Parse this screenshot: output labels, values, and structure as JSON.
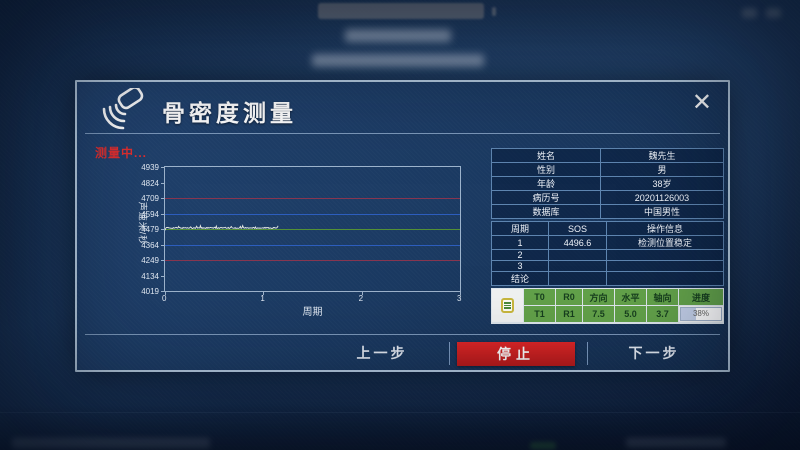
{
  "dialog": {
    "title": "骨密度测量",
    "status_text": "测量中...",
    "close_label": "✕"
  },
  "chart_data": {
    "type": "line",
    "title": "",
    "xlabel": "周期",
    "ylabel": "声速米/秒",
    "xlim": [
      0,
      3
    ],
    "ylim": [
      4019,
      4939
    ],
    "xticks": [
      0,
      1,
      2,
      3
    ],
    "yticks": [
      4019,
      4134,
      4249,
      4364,
      4479,
      4594,
      4709,
      4824,
      4939
    ],
    "grid": false,
    "legend": "none",
    "reference_lines": [
      {
        "value": 4709,
        "color": "#93354e"
      },
      {
        "value": 4594,
        "color": "#2f62c8"
      },
      {
        "value": 4479,
        "color": "#5a9a31"
      },
      {
        "value": 4364,
        "color": "#2f62c8"
      },
      {
        "value": 4249,
        "color": "#93354e"
      }
    ],
    "series": [
      {
        "name": "measurement-trace",
        "baseline": 4487,
        "noise_amplitude": 9,
        "x_start": 0,
        "x_end": 1.15,
        "color": "#e9ece5"
      }
    ]
  },
  "patient": {
    "rows": [
      {
        "label": "姓名",
        "value": "魏先生"
      },
      {
        "label": "性别",
        "value": "男"
      },
      {
        "label": "年龄",
        "value": "38岁"
      },
      {
        "label": "病历号",
        "value": "20201126003"
      },
      {
        "label": "数据库",
        "value": "中国男性"
      }
    ]
  },
  "sos_table": {
    "headers": [
      "周期",
      "SOS",
      "操作信息"
    ],
    "rows": [
      [
        "1",
        "4496.6",
        "检测位置稳定"
      ],
      [
        "2",
        "",
        ""
      ],
      [
        "3",
        "",
        ""
      ],
      [
        "结论",
        "",
        ""
      ]
    ]
  },
  "probe_panel": {
    "t0": "T0",
    "r0": "R0",
    "t1": "T1",
    "r1": "R1",
    "headers": {
      "direction": "方向",
      "horizontal": "水平",
      "axial": "轴向",
      "progress": "进度"
    },
    "values": {
      "direction": "7.5",
      "horizontal": "5.0",
      "axial": "3.7"
    },
    "progress_label": "38%",
    "progress_percent": 38
  },
  "footer": {
    "prev_label": "上一步",
    "stop_label": "停止",
    "next_label": "下一步"
  },
  "colors": {
    "stop_red": "#d32222",
    "status_red": "#e22f2f",
    "cell_green": "#63a24a",
    "dialog_bg": "#1b3a62"
  }
}
